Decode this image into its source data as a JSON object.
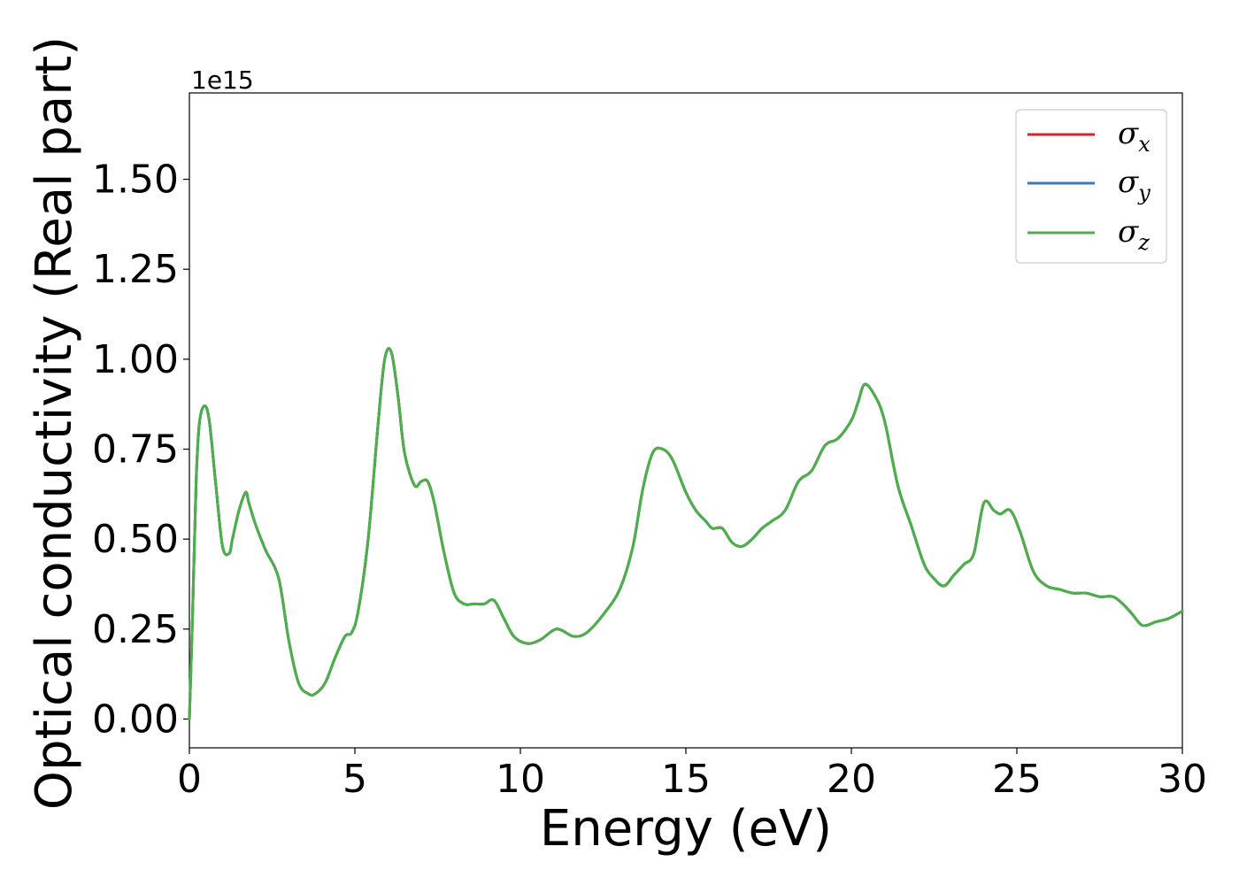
{
  "chart_data": {
    "type": "line",
    "xlabel": "Energy (eV)",
    "ylabel": "Optical conductivity (Real part)",
    "y_offset_label": "1e15",
    "xlim": [
      0,
      30
    ],
    "ylim": [
      -0.08,
      1.74
    ],
    "x_ticks": [
      0,
      5,
      10,
      15,
      20,
      25,
      30
    ],
    "x_tick_labels": [
      "0",
      "5",
      "10",
      "15",
      "20",
      "25",
      "30"
    ],
    "y_ticks": [
      0,
      0.25,
      0.5,
      0.75,
      1.0,
      1.25,
      1.5
    ],
    "y_tick_labels": [
      "0.00",
      "0.25",
      "0.50",
      "0.75",
      "1.00",
      "1.25",
      "1.50"
    ],
    "grid": false,
    "legend_position": "top-right",
    "x": [
      0,
      0.1,
      0.2,
      0.3,
      0.45,
      0.6,
      0.8,
      1.0,
      1.2,
      1.3,
      1.5,
      1.7,
      1.8,
      2.0,
      2.3,
      2.7,
      3.0,
      3.3,
      3.6,
      3.8,
      4.1,
      4.4,
      4.7,
      4.9,
      5.1,
      5.4,
      5.7,
      5.9,
      6.1,
      6.3,
      6.5,
      6.8,
      7.0,
      7.2,
      7.4,
      7.7,
      8.0,
      8.3,
      8.6,
      8.9,
      9.2,
      9.5,
      9.8,
      10.2,
      10.6,
      11.1,
      11.6,
      12.0,
      12.5,
      13.0,
      13.4,
      13.7,
      14.0,
      14.3,
      14.6,
      15.0,
      15.3,
      15.6,
      15.8,
      16.1,
      16.4,
      16.7,
      17.0,
      17.3,
      17.6,
      18.0,
      18.4,
      18.8,
      19.2,
      19.6,
      20.0,
      20.2,
      20.4,
      20.7,
      21.0,
      21.4,
      21.8,
      22.2,
      22.5,
      22.8,
      23.1,
      23.4,
      23.7,
      24.0,
      24.3,
      24.5,
      24.8,
      25.1,
      25.5,
      25.9,
      26.3,
      26.7,
      27.1,
      27.5,
      27.9,
      28.2,
      28.5,
      28.8,
      29.2,
      29.6,
      30.0
    ],
    "series": [
      {
        "name": "σx",
        "color": "#d62728",
        "values": [
          0.0,
          0.3,
          0.65,
          0.82,
          0.87,
          0.83,
          0.65,
          0.48,
          0.46,
          0.5,
          0.58,
          0.63,
          0.6,
          0.54,
          0.47,
          0.39,
          0.22,
          0.1,
          0.07,
          0.07,
          0.1,
          0.17,
          0.23,
          0.24,
          0.3,
          0.5,
          0.82,
          1.0,
          1.02,
          0.9,
          0.74,
          0.65,
          0.66,
          0.66,
          0.6,
          0.46,
          0.35,
          0.32,
          0.32,
          0.32,
          0.33,
          0.28,
          0.23,
          0.21,
          0.22,
          0.25,
          0.23,
          0.24,
          0.29,
          0.36,
          0.48,
          0.64,
          0.74,
          0.75,
          0.72,
          0.63,
          0.58,
          0.55,
          0.53,
          0.53,
          0.49,
          0.48,
          0.5,
          0.53,
          0.55,
          0.58,
          0.66,
          0.69,
          0.76,
          0.78,
          0.83,
          0.88,
          0.93,
          0.9,
          0.83,
          0.65,
          0.54,
          0.43,
          0.39,
          0.37,
          0.4,
          0.43,
          0.46,
          0.6,
          0.58,
          0.57,
          0.58,
          0.52,
          0.41,
          0.37,
          0.36,
          0.35,
          0.35,
          0.34,
          0.34,
          0.32,
          0.29,
          0.26,
          0.27,
          0.28,
          0.3
        ]
      },
      {
        "name": "σy",
        "color": "#377eb8",
        "values": [
          0.0,
          0.3,
          0.65,
          0.82,
          0.87,
          0.83,
          0.65,
          0.48,
          0.46,
          0.5,
          0.58,
          0.63,
          0.6,
          0.54,
          0.47,
          0.39,
          0.22,
          0.1,
          0.07,
          0.07,
          0.1,
          0.17,
          0.23,
          0.24,
          0.3,
          0.5,
          0.82,
          1.0,
          1.02,
          0.9,
          0.74,
          0.65,
          0.66,
          0.66,
          0.6,
          0.46,
          0.35,
          0.32,
          0.32,
          0.32,
          0.33,
          0.28,
          0.23,
          0.21,
          0.22,
          0.25,
          0.23,
          0.24,
          0.29,
          0.36,
          0.48,
          0.64,
          0.74,
          0.75,
          0.72,
          0.63,
          0.58,
          0.55,
          0.53,
          0.53,
          0.49,
          0.48,
          0.5,
          0.53,
          0.55,
          0.58,
          0.66,
          0.69,
          0.76,
          0.78,
          0.83,
          0.88,
          0.93,
          0.9,
          0.83,
          0.65,
          0.54,
          0.43,
          0.39,
          0.37,
          0.4,
          0.43,
          0.46,
          0.6,
          0.58,
          0.57,
          0.58,
          0.52,
          0.41,
          0.37,
          0.36,
          0.35,
          0.35,
          0.34,
          0.34,
          0.32,
          0.29,
          0.26,
          0.27,
          0.28,
          0.3
        ]
      },
      {
        "name": "σz",
        "color": "#4daf4a",
        "values": [
          0.0,
          0.3,
          0.65,
          0.82,
          0.87,
          0.83,
          0.65,
          0.48,
          0.46,
          0.5,
          0.58,
          0.63,
          0.6,
          0.54,
          0.47,
          0.39,
          0.22,
          0.1,
          0.07,
          0.07,
          0.1,
          0.17,
          0.23,
          0.24,
          0.3,
          0.5,
          0.82,
          1.0,
          1.02,
          0.9,
          0.74,
          0.65,
          0.66,
          0.66,
          0.6,
          0.46,
          0.35,
          0.32,
          0.32,
          0.32,
          0.33,
          0.28,
          0.23,
          0.21,
          0.22,
          0.25,
          0.23,
          0.24,
          0.29,
          0.36,
          0.48,
          0.64,
          0.74,
          0.75,
          0.72,
          0.63,
          0.58,
          0.55,
          0.53,
          0.53,
          0.49,
          0.48,
          0.5,
          0.53,
          0.55,
          0.58,
          0.66,
          0.69,
          0.76,
          0.78,
          0.83,
          0.88,
          0.93,
          0.9,
          0.83,
          0.65,
          0.54,
          0.43,
          0.39,
          0.37,
          0.4,
          0.43,
          0.46,
          0.6,
          0.58,
          0.57,
          0.58,
          0.52,
          0.41,
          0.37,
          0.36,
          0.35,
          0.35,
          0.34,
          0.34,
          0.32,
          0.29,
          0.26,
          0.27,
          0.28,
          0.3
        ]
      }
    ],
    "legend": [
      {
        "symbol": "σ",
        "subscript": "x",
        "color": "#d62728"
      },
      {
        "symbol": "σ",
        "subscript": "y",
        "color": "#377eb8"
      },
      {
        "symbol": "σ",
        "subscript": "z",
        "color": "#4daf4a"
      }
    ]
  }
}
